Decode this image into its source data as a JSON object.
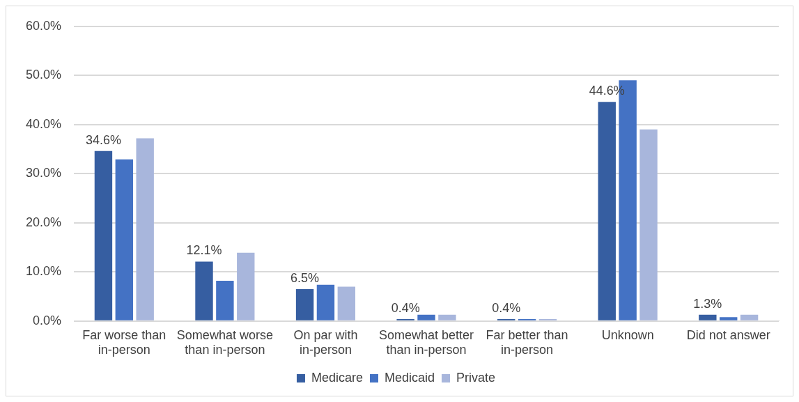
{
  "chart_data": {
    "type": "bar",
    "categories": [
      "Far worse than in-person",
      "Somewhat worse than in-person",
      "On par with in-person",
      "Somewhat better than in-person",
      "Far better than in-person",
      "Unknown",
      "Did not answer"
    ],
    "series": [
      {
        "name": "Medicare",
        "color": "#365ea1",
        "values": [
          34.6,
          12.1,
          6.5,
          0.4,
          0.4,
          44.6,
          1.3
        ],
        "value_labels": [
          "34.6%",
          "12.1%",
          "6.5%",
          "0.4%",
          "0.4%",
          "44.6%",
          "1.3%"
        ]
      },
      {
        "name": "Medicaid",
        "color": "#4472c4",
        "values": [
          32.9,
          8.2,
          7.4,
          1.3,
          0.4,
          49.0,
          0.8
        ]
      },
      {
        "name": "Private",
        "color": "#a8b6dc",
        "values": [
          37.2,
          13.9,
          7.0,
          1.3,
          0.4,
          39.0,
          1.3
        ]
      }
    ],
    "ylim": [
      0,
      60
    ],
    "yticks": [
      {
        "value": 0,
        "label": "0.0%"
      },
      {
        "value": 10,
        "label": "10.0%"
      },
      {
        "value": 20,
        "label": "20.0%"
      },
      {
        "value": 30,
        "label": "30.0%"
      },
      {
        "value": 40,
        "label": "40.0%"
      },
      {
        "value": 50,
        "label": "50.0%"
      },
      {
        "value": 60,
        "label": "60.0%"
      }
    ],
    "grid": "y",
    "legend": "bottom"
  }
}
